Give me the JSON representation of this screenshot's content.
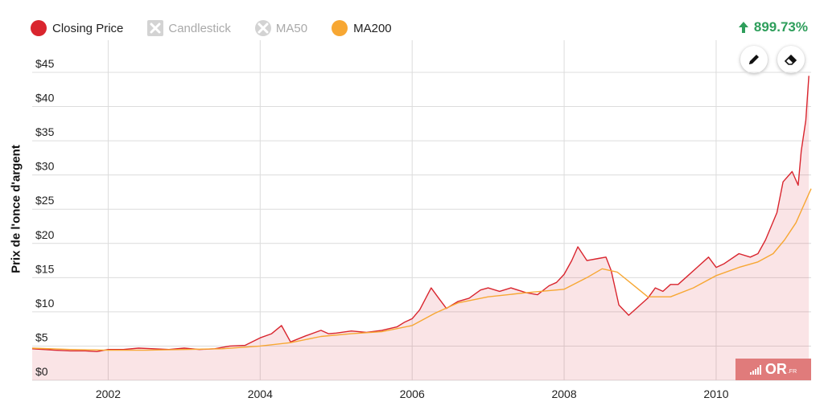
{
  "legend": {
    "closing_price": {
      "label": "Closing Price",
      "color": "#d9252e"
    },
    "candlestick": {
      "label": "Candlestick"
    },
    "ma50": {
      "label": "MA50"
    },
    "ma200": {
      "label": "MA200",
      "color": "#f7a733"
    }
  },
  "performance": {
    "value": "899.73%",
    "icon": "arrow-up-icon",
    "color": "#2e9e5b"
  },
  "tools": {
    "draw": "pencil-icon",
    "erase": "eraser-icon"
  },
  "watermark": {
    "text": "OR",
    "sub": ".FR"
  },
  "chart_data": {
    "type": "line",
    "xlabel": "",
    "ylabel": "Prix de l'once d'argent",
    "xlim": [
      2001.0,
      2011.25
    ],
    "ylim": [
      0,
      45
    ],
    "xticks": [
      2002,
      2004,
      2006,
      2008,
      2010
    ],
    "x_tick_labels": [
      "2002",
      "2004",
      "2006",
      "2008",
      "2010"
    ],
    "yticks": [
      0,
      5,
      10,
      15,
      20,
      25,
      30,
      35,
      40,
      45
    ],
    "y_tick_labels": [
      "$0",
      "$5",
      "$10",
      "$15",
      "$20",
      "$25",
      "$30",
      "$35",
      "$40",
      "$45"
    ],
    "grid": true,
    "legend_position": "top-left",
    "series": [
      {
        "name": "Closing Price",
        "color": "#d9252e",
        "area": true,
        "points": [
          [
            2001.0,
            4.6
          ],
          [
            2001.15,
            4.5
          ],
          [
            2001.3,
            4.4
          ],
          [
            2001.5,
            4.3
          ],
          [
            2001.7,
            4.3
          ],
          [
            2001.85,
            4.2
          ],
          [
            2002.0,
            4.5
          ],
          [
            2002.2,
            4.5
          ],
          [
            2002.4,
            4.7
          ],
          [
            2002.6,
            4.6
          ],
          [
            2002.8,
            4.5
          ],
          [
            2003.0,
            4.7
          ],
          [
            2003.2,
            4.5
          ],
          [
            2003.4,
            4.6
          ],
          [
            2003.6,
            5.0
          ],
          [
            2003.8,
            5.1
          ],
          [
            2004.0,
            6.2
          ],
          [
            2004.15,
            6.8
          ],
          [
            2004.28,
            8.0
          ],
          [
            2004.4,
            5.6
          ],
          [
            2004.6,
            6.5
          ],
          [
            2004.8,
            7.3
          ],
          [
            2004.9,
            6.8
          ],
          [
            2005.0,
            6.9
          ],
          [
            2005.2,
            7.2
          ],
          [
            2005.4,
            7.0
          ],
          [
            2005.6,
            7.3
          ],
          [
            2005.8,
            7.8
          ],
          [
            2005.9,
            8.5
          ],
          [
            2006.0,
            9.0
          ],
          [
            2006.1,
            10.3
          ],
          [
            2006.25,
            13.5
          ],
          [
            2006.35,
            12.0
          ],
          [
            2006.45,
            10.5
          ],
          [
            2006.6,
            11.5
          ],
          [
            2006.75,
            12.0
          ],
          [
            2006.9,
            13.2
          ],
          [
            2007.0,
            13.5
          ],
          [
            2007.15,
            13.0
          ],
          [
            2007.3,
            13.5
          ],
          [
            2007.5,
            12.8
          ],
          [
            2007.65,
            12.5
          ],
          [
            2007.8,
            13.8
          ],
          [
            2007.9,
            14.3
          ],
          [
            2008.0,
            15.5
          ],
          [
            2008.1,
            17.5
          ],
          [
            2008.18,
            19.5
          ],
          [
            2008.3,
            17.5
          ],
          [
            2008.45,
            17.8
          ],
          [
            2008.55,
            18.0
          ],
          [
            2008.62,
            16.0
          ],
          [
            2008.72,
            11.0
          ],
          [
            2008.85,
            9.5
          ],
          [
            2009.0,
            11.0
          ],
          [
            2009.1,
            12.0
          ],
          [
            2009.2,
            13.5
          ],
          [
            2009.3,
            13.0
          ],
          [
            2009.4,
            14.0
          ],
          [
            2009.5,
            14.0
          ],
          [
            2009.6,
            15.0
          ],
          [
            2009.75,
            16.5
          ],
          [
            2009.9,
            18.0
          ],
          [
            2010.0,
            16.5
          ],
          [
            2010.1,
            17.0
          ],
          [
            2010.3,
            18.5
          ],
          [
            2010.45,
            18.0
          ],
          [
            2010.55,
            18.5
          ],
          [
            2010.65,
            20.5
          ],
          [
            2010.8,
            24.5
          ],
          [
            2010.88,
            29.0
          ],
          [
            2011.0,
            30.5
          ],
          [
            2011.08,
            28.5
          ],
          [
            2011.12,
            33.5
          ],
          [
            2011.18,
            38.0
          ],
          [
            2011.22,
            44.5
          ]
        ]
      },
      {
        "name": "MA200",
        "color": "#f7a733",
        "area": false,
        "points": [
          [
            2001.0,
            4.7
          ],
          [
            2001.5,
            4.5
          ],
          [
            2002.0,
            4.4
          ],
          [
            2002.5,
            4.4
          ],
          [
            2003.0,
            4.5
          ],
          [
            2003.5,
            4.6
          ],
          [
            2004.0,
            5.0
          ],
          [
            2004.4,
            5.5
          ],
          [
            2004.8,
            6.4
          ],
          [
            2005.2,
            6.8
          ],
          [
            2005.6,
            7.1
          ],
          [
            2006.0,
            8.0
          ],
          [
            2006.3,
            9.8
          ],
          [
            2006.6,
            11.3
          ],
          [
            2007.0,
            12.2
          ],
          [
            2007.5,
            12.8
          ],
          [
            2008.0,
            13.3
          ],
          [
            2008.3,
            15.0
          ],
          [
            2008.5,
            16.3
          ],
          [
            2008.7,
            15.8
          ],
          [
            2008.9,
            14.0
          ],
          [
            2009.1,
            12.2
          ],
          [
            2009.4,
            12.2
          ],
          [
            2009.7,
            13.5
          ],
          [
            2010.0,
            15.3
          ],
          [
            2010.3,
            16.5
          ],
          [
            2010.55,
            17.3
          ],
          [
            2010.75,
            18.5
          ],
          [
            2010.9,
            20.5
          ],
          [
            2011.05,
            23.0
          ],
          [
            2011.25,
            28.0
          ]
        ]
      }
    ]
  }
}
